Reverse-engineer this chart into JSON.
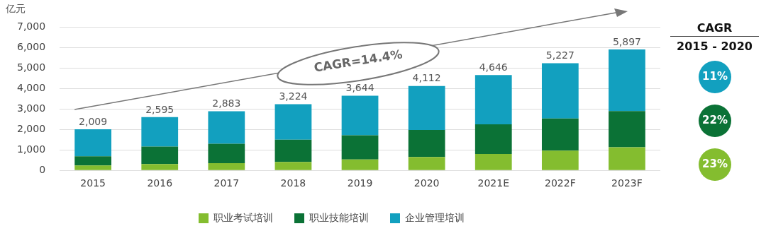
{
  "chart_data": {
    "type": "bar",
    "stacked": true,
    "ylabel": "亿元",
    "categories": [
      "2015",
      "2016",
      "2017",
      "2018",
      "2019",
      "2020",
      "2021E",
      "2022F",
      "2023F"
    ],
    "series": [
      {
        "name": "职业考试培训",
        "color": "#84bd2f",
        "values": [
          240,
          310,
          350,
          410,
          530,
          650,
          800,
          960,
          1130
        ]
      },
      {
        "name": "职业技能培训",
        "color": "#0b7236",
        "values": [
          450,
          850,
          950,
          1090,
          1180,
          1320,
          1450,
          1570,
          1760
        ]
      },
      {
        "name": "企业管理培训",
        "color": "#12a0bf",
        "values": [
          1319,
          1435,
          1583,
          1724,
          1934,
          2142,
          2396,
          2697,
          3007
        ]
      }
    ],
    "totals": [
      "2,009",
      "2,595",
      "2,883",
      "3,224",
      "3,644",
      "4,112",
      "4,646",
      "5,227",
      "5,897"
    ],
    "ylim": [
      0,
      7000
    ],
    "yticks": [
      0,
      {
        "value": 1000,
        "label": "1,000"
      },
      {
        "value": 2000,
        "label": "2,000"
      },
      {
        "value": 3000,
        "label": "3,000"
      },
      {
        "value": 4000,
        "label": "4,000"
      },
      {
        "value": 5000,
        "label": "5,000"
      },
      {
        "value": 6000,
        "label": "6,000"
      },
      {
        "value": 7000,
        "label": "7,000"
      }
    ],
    "grid": "y",
    "legend": "bottom",
    "annotations": [
      "CAGR=14.4%",
      "CAGR",
      "2015 - 2020",
      "11%",
      "22%",
      "23%"
    ]
  }
}
